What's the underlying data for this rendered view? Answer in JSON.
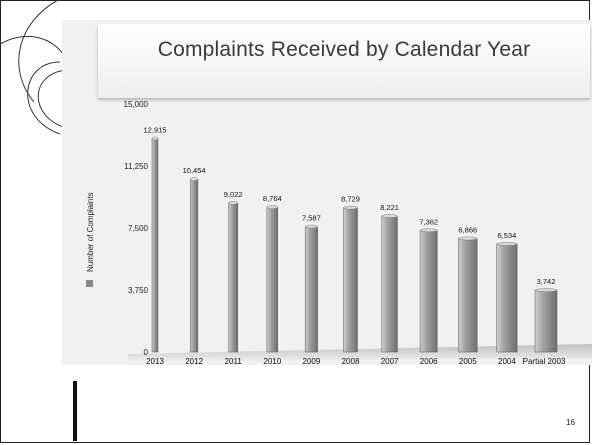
{
  "slide": {
    "page_number": "16"
  },
  "chart_data": {
    "type": "bar",
    "title": "Complaints Received by Calendar Year",
    "ylabel": "Number of Complaints",
    "categories": [
      "2013",
      "2012",
      "2011",
      "2010",
      "2009",
      "2008",
      "2007",
      "2006",
      "2005",
      "2004",
      "Partial 2003"
    ],
    "values": [
      12915,
      10454,
      9022,
      8764,
      7587,
      8729,
      8221,
      7362,
      6866,
      6534,
      3742
    ],
    "value_labels": [
      "12,915",
      "10,454",
      "9,022",
      "8,764",
      "7,587",
      "8,729",
      "8,221",
      "7,362",
      "6,866",
      "6,534",
      "3,742"
    ],
    "yticks": [
      0,
      3750,
      7500,
      11250,
      15000
    ],
    "ytick_labels": [
      "0",
      "3,750",
      "7,500",
      "11,250",
      "15,000"
    ],
    "ylim": [
      0,
      15000
    ],
    "bar_color": "#8a8a8a",
    "legend": {
      "position": "left",
      "label": "Number of Complaints"
    }
  }
}
